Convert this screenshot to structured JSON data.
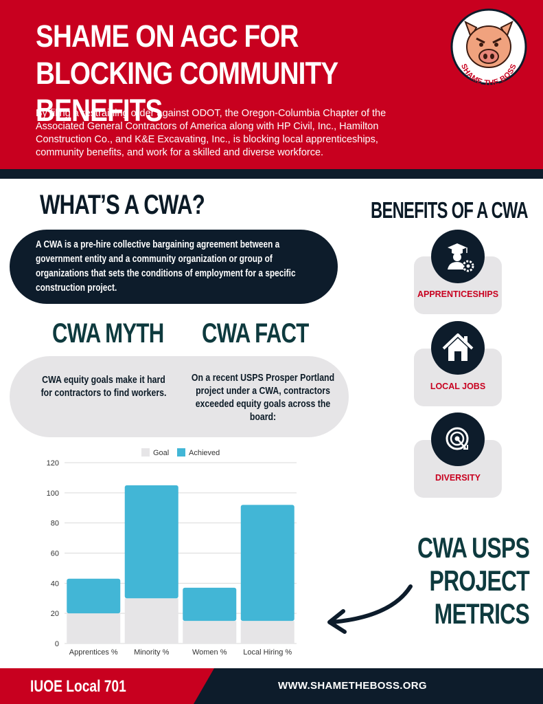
{
  "header": {
    "title": "SHAME ON AGC FOR BLOCKING COMMUNITY BENEFITS",
    "intro": "By filing a restraining order against ODOT, the Oregon-Columbia Chapter of the Associated General Contractors of America along with HP Civil, Inc., Hamilton Construction Co., and K&E Excavating, Inc.,  is blocking local apprenticeships, community benefits, and work for a skilled and diverse workforce.",
    "logo_text": "SHAME THE BOSS",
    "logo_icon": "pig-icon"
  },
  "whats_cwa": {
    "title": "WHAT’S A CWA?",
    "definition": "A CWA is a pre-hire collective bargaining agreement between a government entity and a community organization or group of organizations that sets the conditions of employment for a specific construction project."
  },
  "myth": {
    "title": "CWA MYTH",
    "text": "CWA equity goals make it hard for contractors to find workers."
  },
  "fact": {
    "title": "CWA FACT",
    "text": "On a recent USPS Prosper Portland project under a CWA, contractors exceeded equity goals across the board:"
  },
  "benefits": {
    "title": "BENEFITS OF A CWA",
    "items": [
      {
        "label": "APPRENTICESHIPS",
        "icon": "graduate-gear-icon"
      },
      {
        "label": "LOCAL JOBS",
        "icon": "house-icon"
      },
      {
        "label": "DIVERSITY",
        "icon": "target-icon"
      }
    ]
  },
  "metrics": {
    "title": "CWA USPS PROJECT METRICS"
  },
  "chart_data": {
    "type": "bar",
    "stacked": true,
    "categories": [
      "Apprentices %",
      "Minority %",
      "Women %",
      "Local Hiring %"
    ],
    "series": [
      {
        "name": "Goal",
        "values": [
          20,
          30,
          15,
          15
        ],
        "color": "#e6e5e7"
      },
      {
        "name": "Achieved",
        "values": [
          23,
          75,
          22,
          77
        ],
        "color": "#42b6d6"
      }
    ],
    "ylim": [
      0,
      120
    ],
    "yticks": [
      0,
      20,
      40,
      60,
      80,
      100,
      120
    ],
    "grid": true,
    "legend": "top"
  },
  "footer": {
    "left": "IUOE Local 701",
    "right": "WWW.SHAMETHEBOSS.ORG"
  },
  "colors": {
    "red": "#c8001f",
    "navy": "#0d1c2b",
    "teal": "#0e3a3e",
    "achieved": "#42b6d6",
    "goal": "#e6e5e7"
  }
}
